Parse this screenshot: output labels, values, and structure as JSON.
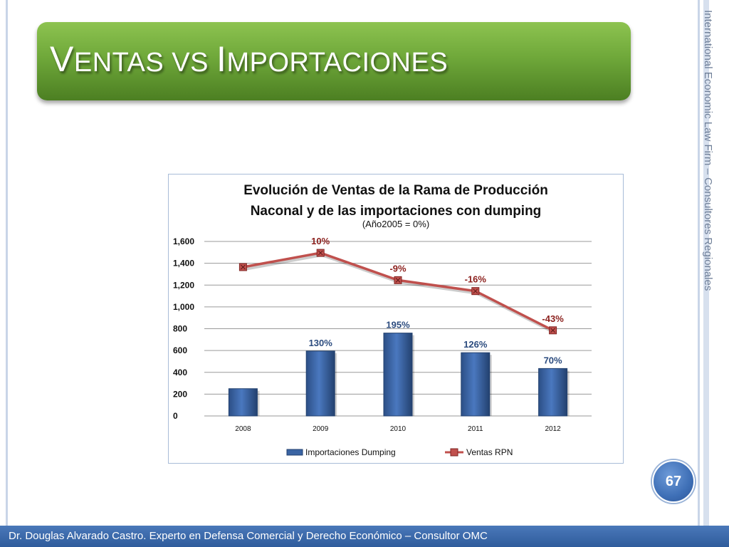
{
  "slide": {
    "title_first1": "V",
    "title_rest1": "ENTAS VS ",
    "title_first2": "I",
    "title_rest2": "MPORTACIONES",
    "side_text": "International Economic Law Firm – Consultores Regionales",
    "page_number": "67",
    "footer": "Dr. Douglas Alvarado Castro. Experto en Defensa Comercial y Derecho Económico – Consultor OMC"
  },
  "chart_data": {
    "type": "bar",
    "title_line1": "Evolución de Ventas de la Rama de Producción",
    "title_line2": "Naconal y de las importaciones con dumping",
    "subtitle": "(Año2005 = 0%)",
    "categories": [
      "2008",
      "2009",
      "2010",
      "2011",
      "2012"
    ],
    "ylim": [
      0,
      1600
    ],
    "yticks": [
      0,
      200,
      400,
      600,
      800,
      1000,
      1200,
      1400,
      1600
    ],
    "ytick_labels": [
      "0",
      "200",
      "400",
      "600",
      "800",
      "1,000",
      "1,200",
      "1,400",
      "1,600"
    ],
    "grid": true,
    "legend": "bottom",
    "series": [
      {
        "name": "Importaciones Dumping",
        "type": "bar",
        "color": "#3a64a3",
        "values": [
          250,
          595,
          760,
          580,
          435
        ],
        "labels": [
          "",
          "130%",
          "195%",
          "126%",
          "70%"
        ],
        "label_color": "#2b4b7e"
      },
      {
        "name": "Ventas RPN",
        "type": "line",
        "color": "#c0504d",
        "values": [
          1365,
          1495,
          1245,
          1145,
          785
        ],
        "labels": [
          "",
          "10%",
          "-9%",
          "-16%",
          "-43%"
        ],
        "label_color": "#8b1f1c"
      }
    ]
  }
}
